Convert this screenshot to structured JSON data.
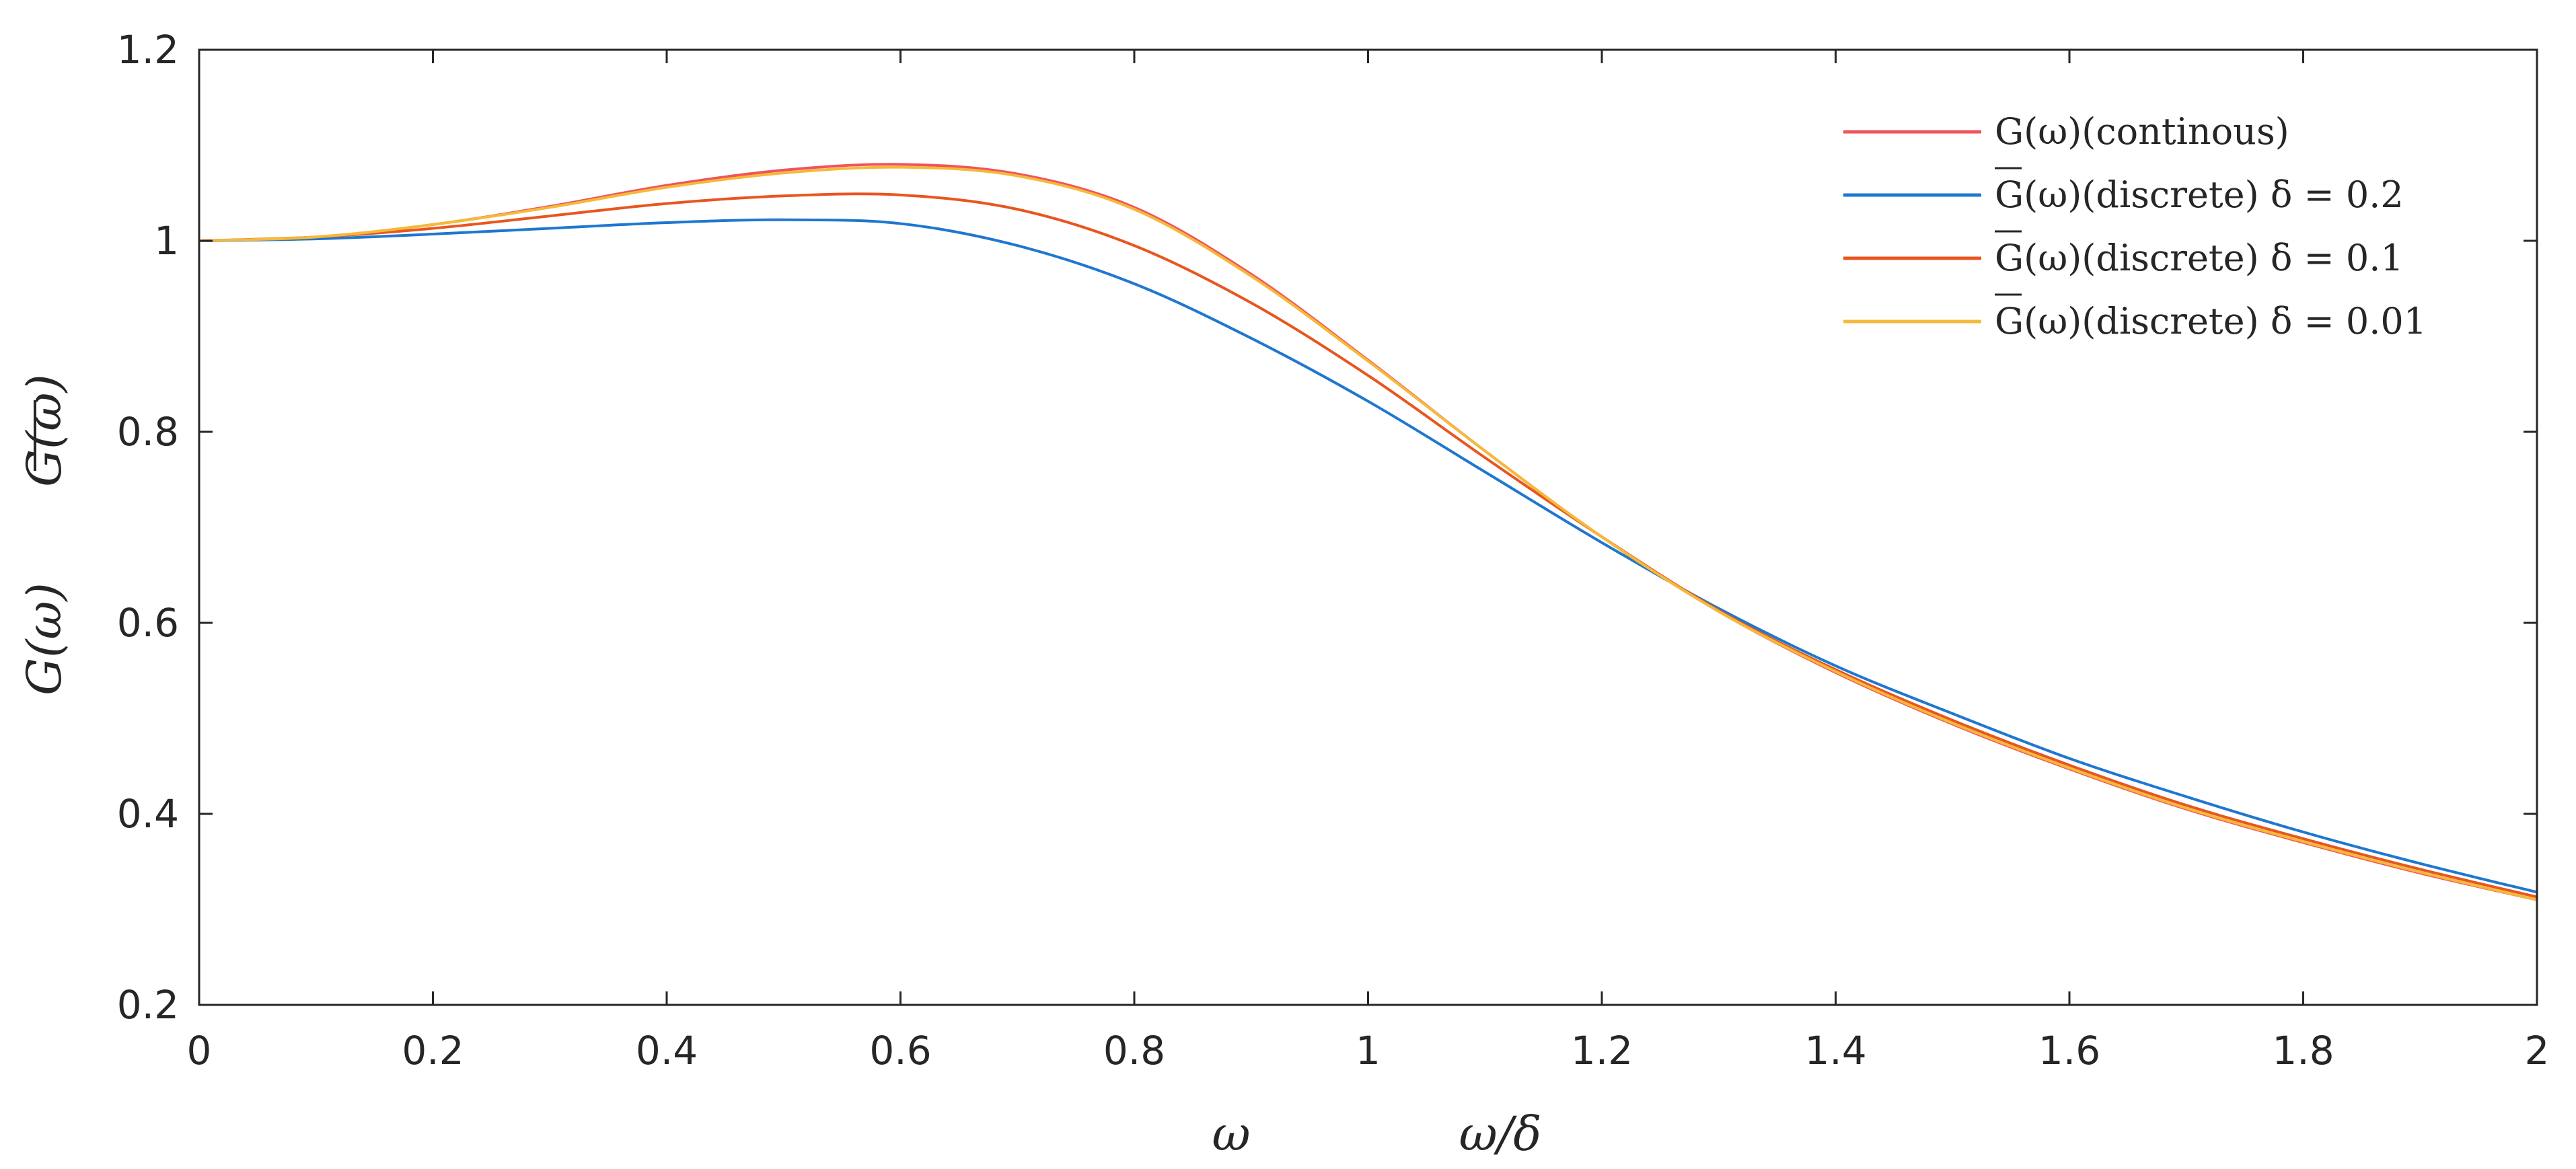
{
  "chart_data": {
    "type": "line",
    "title": "",
    "xlim": [
      0,
      2
    ],
    "ylim": [
      0.2,
      1.2
    ],
    "x_ticks": [
      "0",
      "0.2",
      "0.4",
      "0.6",
      "0.8",
      "1",
      "1.2",
      "1.4",
      "1.6",
      "1.8",
      "2"
    ],
    "y_ticks": [
      "0.2",
      "0.4",
      "0.6",
      "0.8",
      "1",
      "1.2"
    ],
    "xlabel_parts": [
      "ω",
      "ω/δ"
    ],
    "ylabel_parts": [
      "G(ω)",
      "G(ω)"
    ],
    "grid": false,
    "legend_position": "top-right",
    "x": [
      0,
      0.1,
      0.2,
      0.3,
      0.4,
      0.5,
      0.6,
      0.7,
      0.8,
      0.9,
      1.0,
      1.1,
      1.2,
      1.3,
      1.4,
      1.5,
      1.6,
      1.7,
      1.8,
      1.9,
      2.0
    ],
    "series": [
      {
        "name": "G(ω)(continous)",
        "color": "#f0545a",
        "values": [
          1.0,
          1.004,
          1.017,
          1.036,
          1.058,
          1.074,
          1.08,
          1.07,
          1.035,
          0.965,
          0.875,
          0.78,
          0.69,
          0.612,
          0.548,
          0.494,
          0.447,
          0.405,
          0.37,
          0.338,
          0.31
        ]
      },
      {
        "name": "G(ω)(discrete) δ = 0.2",
        "color": "#1f77d0",
        "values": [
          1.0,
          1.002,
          1.007,
          1.013,
          1.019,
          1.022,
          1.018,
          0.995,
          0.955,
          0.898,
          0.832,
          0.758,
          0.684,
          0.615,
          0.555,
          0.505,
          0.458,
          0.418,
          0.381,
          0.348,
          0.318
        ]
      },
      {
        "name": "G(ω)(discrete) δ = 0.1",
        "color": "#e8561f",
        "values": [
          1.0,
          1.004,
          1.013,
          1.026,
          1.039,
          1.047,
          1.048,
          1.033,
          0.995,
          0.935,
          0.859,
          0.773,
          0.69,
          0.613,
          0.551,
          0.498,
          0.451,
          0.409,
          0.374,
          0.342,
          0.313
        ]
      },
      {
        "name": "G(ω)(discrete) δ = 0.01",
        "color": "#f5b93a",
        "values": [
          1.0,
          1.004,
          1.017,
          1.035,
          1.056,
          1.071,
          1.077,
          1.068,
          1.033,
          0.963,
          0.874,
          0.78,
          0.69,
          0.612,
          0.549,
          0.495,
          0.448,
          0.406,
          0.371,
          0.339,
          0.31
        ]
      }
    ]
  }
}
